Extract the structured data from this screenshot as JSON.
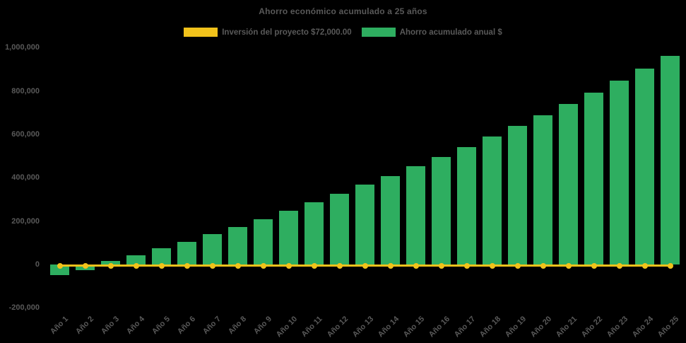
{
  "title": "Ahorro económico acumulado a 25 años",
  "colors": {
    "background": "#000000",
    "text": "#595959",
    "investment_line": "#F1C21B",
    "savings_bar": "#2EAE60"
  },
  "legend": {
    "items": [
      {
        "label": "Inversión del proyecto $72,000.00",
        "color": "#F1C21B",
        "marker": "swatch"
      },
      {
        "label": "Ahorro acumulado anual $",
        "color": "#2EAE60",
        "marker": "swatch"
      }
    ]
  },
  "chart_data": {
    "type": "bar",
    "title": "Ahorro económico acumulado a 25 años",
    "xlabel": "",
    "ylabel": "",
    "grid": false,
    "legend_position": "top-center",
    "ylim": [
      -200000,
      1000000
    ],
    "yticks": [
      -200000,
      0,
      200000,
      400000,
      600000,
      800000,
      1000000
    ],
    "ytick_labels": [
      "-200,000",
      "0",
      "200,000",
      "400,000",
      "600,000",
      "800,000",
      "1,000,000"
    ],
    "categories": [
      "Año 1",
      "Año 2",
      "Año 3",
      "Año 4",
      "Año 5",
      "Año 6",
      "Año 7",
      "Año 8",
      "Año 9",
      "Año 10",
      "Año 11",
      "Año 12",
      "Año 13",
      "Año 14",
      "Año 15",
      "Año 16",
      "Año 17",
      "Año 18",
      "Año 19",
      "Año 20",
      "Año 21",
      "Año 22",
      "Año 23",
      "Año 24",
      "Año 25"
    ],
    "series": [
      {
        "name": "Inversión del proyecto $72,000.00",
        "type": "line",
        "color": "#F1C21B",
        "marker": "circle",
        "plotted_value": 0,
        "investment_amount_label": "$72,000.00"
      },
      {
        "name": "Ahorro acumulado anual $",
        "type": "bar",
        "color": "#2EAE60",
        "values": [
          -48000,
          -25000,
          16000,
          43000,
          75000,
          105000,
          139000,
          173000,
          210000,
          249000,
          288000,
          327000,
          368000,
          409000,
          452000,
          497000,
          542000,
          590000,
          639000,
          688000,
          740000,
          793000,
          849000,
          905000,
          961000
        ]
      }
    ]
  }
}
